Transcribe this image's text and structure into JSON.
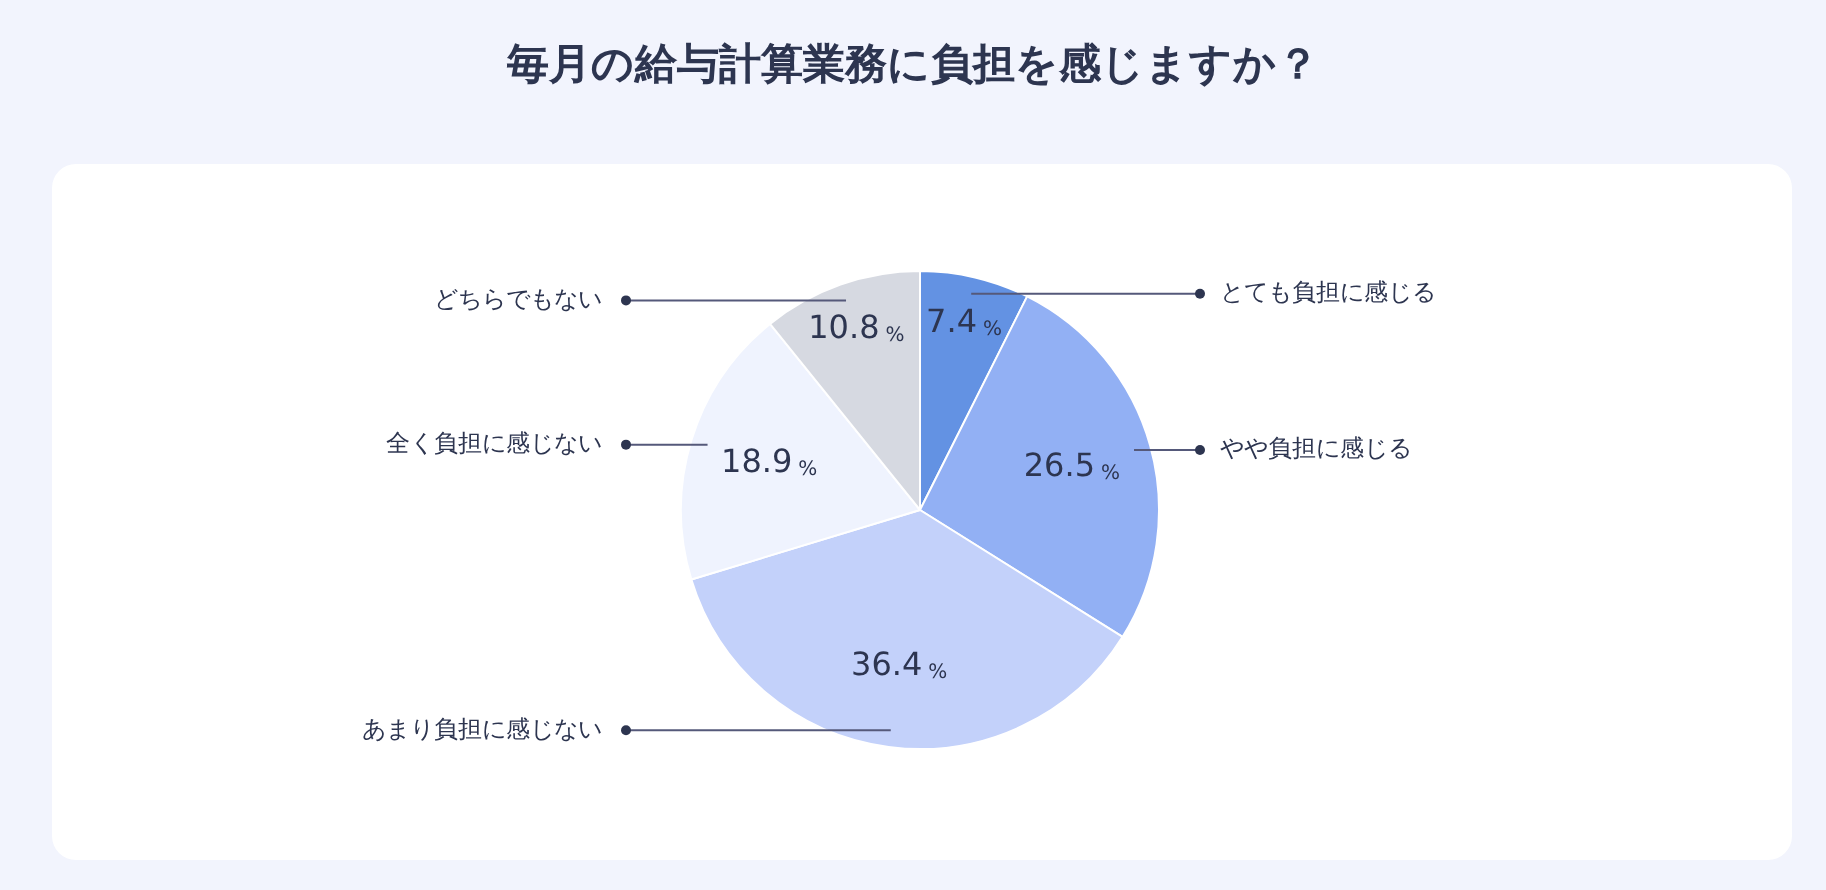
{
  "chart_data": {
    "type": "pie",
    "title": "毎月の給与計算業務に負担を感じますか？",
    "categories": [
      "とても負担に感じる",
      "やや負担に感じる",
      "あまり負担に感じない",
      "全く負担に感じない",
      "どちらでもない"
    ],
    "values": [
      7.4,
      26.5,
      36.4,
      18.9,
      10.8
    ],
    "colors": [
      "#6392e3",
      "#92b0f4",
      "#c3d1fa",
      "#eff3fe",
      "#d6d9e1"
    ],
    "value_labels": [
      "7.4%",
      "26.5%",
      "36.4%",
      "18.9%",
      "10.8%"
    ],
    "legend": false
  }
}
